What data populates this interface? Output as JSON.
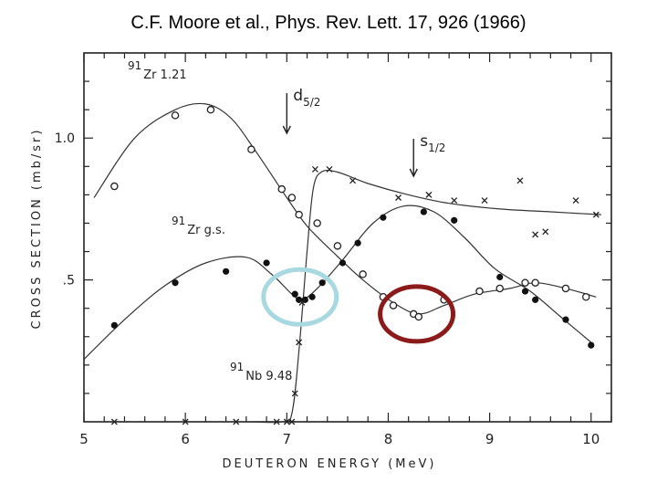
{
  "header": {
    "citation": "C.F. Moore et al., Phys. Rev. Lett. 17, 926 (1966)"
  },
  "chart_data": {
    "type": "scatter",
    "xlabel": "DEUTERON ENERGY (MeV)",
    "ylabel": "CROSS SECTION (mb/sr)",
    "xlim": [
      5,
      10.2
    ],
    "ylim": [
      0,
      1.3
    ],
    "x_ticks": [
      5,
      6,
      7,
      8,
      9,
      10
    ],
    "x_tick_labels": [
      "5",
      "6",
      "7",
      "8",
      "9",
      "10"
    ],
    "y_ticks": [
      0.5,
      1.0
    ],
    "y_tick_labels": [
      ".5",
      "1.0"
    ],
    "annotations": [
      {
        "text": "d5/2",
        "base": "d",
        "sub": "5/2",
        "x": 7.0
      },
      {
        "text": "s1/2",
        "base": "s",
        "sub": "1/2",
        "x": 8.25
      }
    ],
    "highlights": [
      {
        "label": "light-blue-ellipse",
        "x": 7.13,
        "y": 0.44,
        "color": "#a8d8e0"
      },
      {
        "label": "dark-red-ellipse",
        "x": 8.28,
        "y": 0.38,
        "color": "#8b1a1a"
      }
    ],
    "series": [
      {
        "name": "91Zr 1.21",
        "label_parts": {
          "mass": "91",
          "element": "Zr",
          "rest": "1.21"
        },
        "marker": "open-circle",
        "points": [
          [
            5.3,
            0.83
          ],
          [
            5.9,
            1.08
          ],
          [
            6.25,
            1.1
          ],
          [
            6.65,
            0.96
          ],
          [
            6.95,
            0.82
          ],
          [
            7.05,
            0.79
          ],
          [
            7.12,
            0.73
          ],
          [
            7.3,
            0.7
          ],
          [
            7.5,
            0.62
          ],
          [
            7.75,
            0.52
          ],
          [
            7.95,
            0.44
          ],
          [
            8.05,
            0.41
          ],
          [
            8.25,
            0.38
          ],
          [
            8.3,
            0.37
          ],
          [
            8.55,
            0.43
          ],
          [
            8.9,
            0.46
          ],
          [
            9.1,
            0.47
          ],
          [
            9.35,
            0.49
          ],
          [
            9.45,
            0.49
          ],
          [
            9.75,
            0.47
          ],
          [
            9.95,
            0.44
          ]
        ],
        "curve": [
          [
            5.1,
            0.79
          ],
          [
            5.5,
            1.0
          ],
          [
            5.9,
            1.1
          ],
          [
            6.2,
            1.12
          ],
          [
            6.45,
            1.07
          ],
          [
            6.7,
            0.95
          ],
          [
            7.0,
            0.79
          ],
          [
            7.2,
            0.69
          ],
          [
            7.45,
            0.6
          ],
          [
            7.75,
            0.5
          ],
          [
            8.05,
            0.42
          ],
          [
            8.3,
            0.38
          ],
          [
            8.55,
            0.41
          ],
          [
            8.85,
            0.45
          ],
          [
            9.2,
            0.47
          ],
          [
            9.45,
            0.49
          ],
          [
            9.75,
            0.47
          ],
          [
            10.05,
            0.44
          ]
        ]
      },
      {
        "name": "91Zr g.s.",
        "label_parts": {
          "mass": "91",
          "element": "Zr",
          "rest": "g.s."
        },
        "marker": "filled-circle",
        "points": [
          [
            5.3,
            0.34
          ],
          [
            5.9,
            0.49
          ],
          [
            6.4,
            0.53
          ],
          [
            6.8,
            0.56
          ],
          [
            7.08,
            0.45
          ],
          [
            7.12,
            0.43
          ],
          [
            7.18,
            0.43
          ],
          [
            7.25,
            0.44
          ],
          [
            7.35,
            0.49
          ],
          [
            7.55,
            0.56
          ],
          [
            7.7,
            0.63
          ],
          [
            7.95,
            0.72
          ],
          [
            8.35,
            0.74
          ],
          [
            8.65,
            0.71
          ],
          [
            9.1,
            0.51
          ],
          [
            9.35,
            0.46
          ],
          [
            9.45,
            0.43
          ],
          [
            9.75,
            0.36
          ],
          [
            10.0,
            0.27
          ]
        ],
        "curve": [
          [
            5.0,
            0.22
          ],
          [
            5.4,
            0.36
          ],
          [
            5.8,
            0.48
          ],
          [
            6.2,
            0.56
          ],
          [
            6.6,
            0.58
          ],
          [
            6.85,
            0.52
          ],
          [
            7.05,
            0.45
          ],
          [
            7.15,
            0.43
          ],
          [
            7.3,
            0.47
          ],
          [
            7.55,
            0.57
          ],
          [
            7.85,
            0.7
          ],
          [
            8.15,
            0.76
          ],
          [
            8.45,
            0.74
          ],
          [
            8.75,
            0.65
          ],
          [
            9.05,
            0.54
          ],
          [
            9.4,
            0.46
          ],
          [
            9.7,
            0.37
          ],
          [
            10.0,
            0.28
          ]
        ]
      },
      {
        "name": "91Nb 9.48",
        "label_parts": {
          "mass": "91",
          "element": "Nb",
          "rest": "9.48"
        },
        "marker": "cross",
        "points": [
          [
            5.3,
            0.0
          ],
          [
            6.0,
            0.0
          ],
          [
            6.5,
            0.0
          ],
          [
            6.9,
            0.0
          ],
          [
            7.0,
            0.0
          ],
          [
            7.05,
            0.0
          ],
          [
            7.08,
            0.1
          ],
          [
            7.12,
            0.28
          ],
          [
            7.15,
            0.42
          ],
          [
            7.28,
            0.89
          ],
          [
            7.42,
            0.89
          ],
          [
            7.65,
            0.85
          ],
          [
            8.1,
            0.79
          ],
          [
            8.4,
            0.8
          ],
          [
            8.65,
            0.78
          ],
          [
            8.95,
            0.78
          ],
          [
            9.3,
            0.85
          ],
          [
            9.45,
            0.66
          ],
          [
            9.55,
            0.67
          ],
          [
            9.85,
            0.78
          ],
          [
            10.05,
            0.73
          ]
        ],
        "curve": [
          [
            5.05,
            0.0
          ],
          [
            6.5,
            0.0
          ],
          [
            6.95,
            0.0
          ],
          [
            7.05,
            0.03
          ],
          [
            7.12,
            0.25
          ],
          [
            7.2,
            0.6
          ],
          [
            7.26,
            0.82
          ],
          [
            7.34,
            0.88
          ],
          [
            7.5,
            0.88
          ],
          [
            7.8,
            0.84
          ],
          [
            8.2,
            0.8
          ],
          [
            8.6,
            0.77
          ],
          [
            9.1,
            0.75
          ],
          [
            9.6,
            0.74
          ],
          [
            10.1,
            0.73
          ]
        ]
      }
    ]
  }
}
